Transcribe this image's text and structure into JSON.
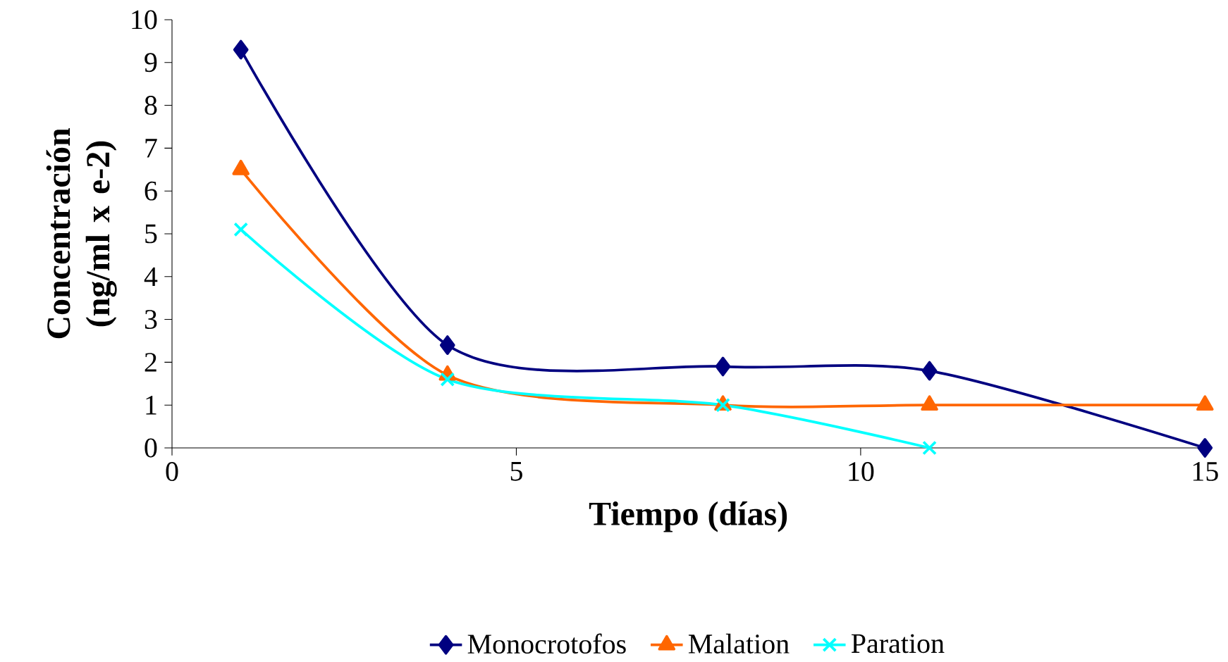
{
  "chart_data": {
    "type": "line",
    "xlabel": "Tiempo (días)",
    "ylabel": "Concentración (ng/ml x e-2)",
    "xlim": [
      0,
      15
    ],
    "ylim": [
      0,
      10
    ],
    "xticks": [
      0,
      5,
      10,
      15
    ],
    "yticks": [
      0,
      1,
      2,
      3,
      4,
      5,
      6,
      7,
      8,
      9,
      10
    ],
    "grid": false,
    "legend": "bottom",
    "line_style": "solid",
    "series": [
      {
        "name": "Monocrotofos",
        "color": "#000080",
        "marker": "diamond",
        "x": [
          1,
          4,
          8,
          11,
          15
        ],
        "values": [
          9.3,
          2.4,
          1.9,
          1.8,
          0
        ]
      },
      {
        "name": "Malation",
        "color": "#ff6600",
        "marker": "triangle",
        "x": [
          1,
          4,
          8,
          11,
          15
        ],
        "values": [
          6.5,
          1.7,
          1.0,
          1.0,
          1.0
        ]
      },
      {
        "name": "Paration",
        "color": "#00ffff",
        "marker": "cross",
        "x": [
          1,
          4,
          8,
          11
        ],
        "values": [
          5.1,
          1.6,
          1.0,
          0.0
        ]
      }
    ]
  }
}
